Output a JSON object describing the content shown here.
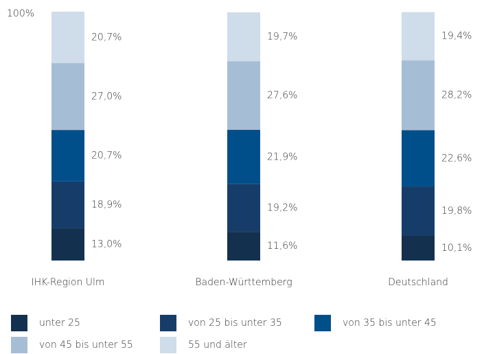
{
  "chart_data": {
    "type": "stacked_bar",
    "categories": [
      "IHK-Region Ulm",
      "Baden-Württemberg",
      "Deutschland"
    ],
    "series": [
      {
        "name": "unter 25",
        "color": "#14304f",
        "values": [
          13.0,
          11.6,
          10.1
        ],
        "value_labels": [
          "13,0%",
          "11,6%",
          "10,1%"
        ]
      },
      {
        "name": "von 25 bis unter 35",
        "color": "#163d6a",
        "values": [
          18.9,
          19.2,
          19.8
        ],
        "value_labels": [
          "18,9%",
          "19,2%",
          "19,8%"
        ]
      },
      {
        "name": "von 35 bis unter 45",
        "color": "#004f8a",
        "values": [
          20.7,
          21.9,
          22.6
        ],
        "value_labels": [
          "20,7%",
          "21,9%",
          "22,6%"
        ]
      },
      {
        "name": "von 45 bis unter 55",
        "color": "#a6bdd6",
        "values": [
          27.0,
          27.6,
          28.2
        ],
        "value_labels": [
          "27,0%",
          "27,6%",
          "28,2%"
        ]
      },
      {
        "name": "55 und älter",
        "color": "#cfdce9",
        "values": [
          20.7,
          19.7,
          19.4
        ],
        "value_labels": [
          "20,7%",
          "19,7%",
          "19,4%"
        ]
      }
    ],
    "ylim": [
      0,
      100
    ],
    "yticks": [
      {
        "value": 100,
        "label": "100%"
      }
    ]
  }
}
